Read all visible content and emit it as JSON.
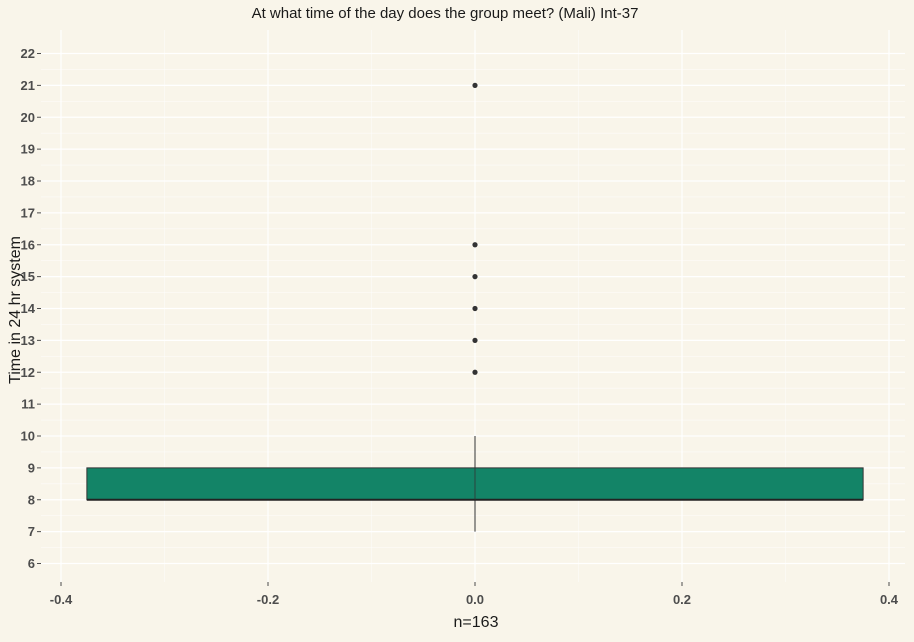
{
  "chart_data": {
    "type": "boxplot",
    "title": "At what time of the day does the group meet? (Mali) Int-37",
    "xlabel": "n=163",
    "ylabel": "Time in 24 hr system",
    "xlim": [
      -0.4,
      0.4
    ],
    "ylim": [
      6,
      22
    ],
    "x_ticks": [
      "-0.4",
      "-0.2",
      "0.0",
      "0.2",
      "0.4"
    ],
    "y_ticks": [
      "6",
      "7",
      "8",
      "9",
      "10",
      "11",
      "12",
      "13",
      "14",
      "15",
      "16",
      "17",
      "18",
      "19",
      "20",
      "21",
      "22"
    ],
    "box": {
      "x_center": 0.0,
      "x_min": -0.375,
      "x_max": 0.375,
      "q1": 8,
      "median": 8,
      "q3": 9,
      "whisker_low": 7,
      "whisker_high": 10,
      "fill": "#138467",
      "outliers": [
        12,
        13,
        14,
        15,
        16,
        21
      ]
    },
    "grid": true,
    "background": "#f9f5ea",
    "gridline_color": "#ffffff"
  }
}
